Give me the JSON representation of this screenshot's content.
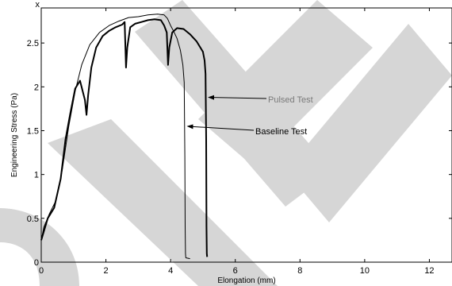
{
  "chart_data": {
    "type": "line",
    "title": "",
    "xlabel": "Elongation (mm)",
    "ylabel": "Engineering Stress (Pa)",
    "y_multiplier_label": "x",
    "xlim": [
      0,
      12.7
    ],
    "ylim": [
      0,
      2.9
    ],
    "xticks": [
      0,
      2,
      4,
      6,
      8,
      10,
      12
    ],
    "yticks": [
      0,
      0.5,
      1,
      1.5,
      2,
      2.5
    ],
    "grid": false,
    "legend": "none",
    "series": [
      {
        "color": "#000000",
        "x": [
          0.0,
          0.08,
          0.2,
          0.4,
          0.6,
          0.75,
          0.9,
          1.05,
          1.2,
          1.35,
          1.4,
          1.45,
          1.55,
          1.7,
          1.9,
          2.1,
          2.3,
          2.5,
          2.58,
          2.62,
          2.66,
          2.75,
          2.9,
          3.1,
          3.3,
          3.5,
          3.7,
          3.8,
          3.88,
          3.92,
          3.96,
          4.05,
          4.2,
          4.4,
          4.6,
          4.8,
          5.0,
          5.05,
          5.08,
          5.1,
          5.11,
          5.12,
          5.13
        ],
        "y": [
          0.25,
          0.35,
          0.5,
          0.62,
          0.95,
          1.4,
          1.7,
          1.98,
          2.07,
          1.85,
          1.68,
          1.9,
          2.22,
          2.45,
          2.58,
          2.64,
          2.68,
          2.71,
          2.74,
          2.22,
          2.45,
          2.68,
          2.72,
          2.74,
          2.76,
          2.77,
          2.76,
          2.7,
          2.62,
          2.25,
          2.45,
          2.62,
          2.67,
          2.66,
          2.6,
          2.52,
          2.4,
          2.3,
          2.15,
          1.4,
          0.4,
          0.1,
          0.06
        ]
      },
      {
        "color": "#000000",
        "x": [
          0.0,
          0.08,
          0.25,
          0.45,
          0.65,
          0.85,
          1.05,
          1.25,
          1.5,
          1.8,
          2.1,
          2.4,
          2.7,
          3.0,
          3.3,
          3.6,
          3.8,
          3.9,
          4.0,
          4.1,
          4.2,
          4.3,
          4.38,
          4.42,
          4.44,
          4.45,
          4.46,
          4.47,
          4.6
        ],
        "y": [
          0.25,
          0.4,
          0.55,
          0.7,
          1.05,
          1.55,
          1.95,
          2.25,
          2.48,
          2.62,
          2.7,
          2.75,
          2.79,
          2.8,
          2.82,
          2.83,
          2.82,
          2.78,
          2.7,
          2.63,
          2.55,
          2.42,
          2.25,
          2.05,
          1.2,
          0.4,
          0.1,
          0.05,
          0.04
        ]
      }
    ],
    "annotations": [
      {
        "text": "Pulsed Test",
        "arrow_to_x": 5.15,
        "arrow_to_y": 1.88
      },
      {
        "text": "Baseline Test",
        "arrow_to_x": 4.5,
        "arrow_to_y": 1.55
      }
    ]
  }
}
